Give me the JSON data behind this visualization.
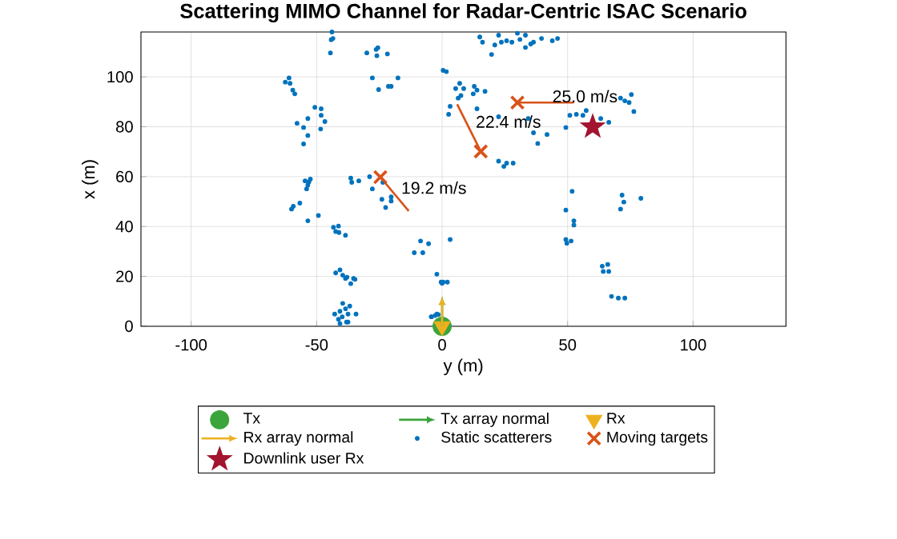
{
  "chart_data": {
    "type": "scatter",
    "title": "Scattering MIMO Channel for Radar-Centric ISAC Scenario",
    "xlabel": "y (m)",
    "ylabel": "x (m)",
    "xlim": [
      -120,
      137
    ],
    "ylim": [
      0,
      118
    ],
    "xticks": [
      -100,
      -50,
      0,
      50,
      100
    ],
    "yticks": [
      0,
      20,
      40,
      60,
      80,
      100
    ],
    "grid": true,
    "legend": "bottom",
    "series": [
      {
        "name": "Tx",
        "marker": "circle",
        "color": "#3ba43b",
        "x": [
          0
        ],
        "values": [
          0
        ]
      },
      {
        "name": "Tx array normal",
        "type": "line",
        "color": "#3ba43b"
      },
      {
        "name": "Rx",
        "marker": "triangle",
        "color": "#edb120",
        "x": [
          0
        ],
        "values": [
          0
        ]
      },
      {
        "name": "Rx array normal",
        "type": "line",
        "color": "#edb120"
      },
      {
        "name": "Static scatterers",
        "marker": "circle",
        "color": "#0072bd",
        "x": [
          -43.9,
          -43.5,
          -44.2,
          -44.5,
          -30,
          -26.3,
          -25.6,
          -26,
          -21.8,
          -27.8,
          -25.3,
          -21.4,
          -20.3,
          -17.6,
          -62.5,
          -61,
          -60.6,
          -59.5,
          -58.7,
          -57.8,
          -55.2,
          -53.5,
          -55.2,
          -53.5,
          -50.7,
          -48.2,
          -48.2,
          -46.7,
          -48.4,
          -54.6,
          -52.5,
          -54,
          -53.5,
          -53.1,
          -59.3,
          -60,
          -56.7,
          -53.5,
          -49.3,
          -36.4,
          -36,
          -33.2,
          -28.9,
          -23.6,
          -24,
          -22.5,
          -20.3,
          -20.3,
          -27.8,
          -43.3,
          -41.3,
          -42.4,
          -41.1,
          -38.5,
          -42.4,
          -40.7,
          -39.6,
          -38.5,
          -37.9,
          -35.3,
          -36.4,
          -34.7,
          -42.8,
          -40.7,
          -39.6,
          -38.5,
          -37.5,
          -39.8,
          -41.3,
          -38.1,
          -36.8,
          -34.3,
          -40.7,
          -37.5,
          -11.1,
          -8.6,
          -7.7,
          -5.4,
          -2.1,
          -0.4,
          0.4,
          -4.3,
          -2.8,
          -1.5,
          0.4,
          1.7,
          3.2,
          2.1,
          0,
          -4.3,
          -2.1,
          5.4,
          7,
          8.6,
          3.2,
          6.4,
          7.5,
          2.6,
          12.8,
          13.9,
          12.4,
          17.1,
          13.9,
          22.5,
          34.3,
          38.1,
          36.4,
          41.8,
          49.3,
          50.9,
          53.5,
          56.1,
          57.4,
          63.2,
          66.4,
          71.1,
          72.8,
          75.4,
          74.5,
          76.4,
          22.5,
          24.6,
          25.7,
          28.3,
          15,
          16.1,
          19.7,
          21,
          22.5,
          23.6,
          25.7,
          27.8,
          30,
          31,
          33.2,
          35.3,
          36.4,
          39.6,
          43.9,
          46,
          33.2,
          51.8,
          49.3,
          52.5,
          52.5,
          49.3,
          51.4,
          49.7,
          71.7,
          72.4,
          71.1,
          79.2,
          63.8,
          66,
          64.2,
          66.4,
          67.5,
          70.2,
          72.8
        ],
        "values": [
          118,
          115.4,
          114.9,
          109.6,
          109.6,
          111,
          111.7,
          108.5,
          109.2,
          99.6,
          94.9,
          96.2,
          96.2,
          99.6,
          97.9,
          99.6,
          97.4,
          94.7,
          93.2,
          81.4,
          79.7,
          83.3,
          73.1,
          76.5,
          87.8,
          87.2,
          84.6,
          82.1,
          79.1,
          58.3,
          59,
          55.1,
          56.6,
          57.9,
          48.1,
          47,
          49.4,
          42.3,
          44.4,
          59.4,
          57.7,
          58.3,
          60,
          57.7,
          50.9,
          47.6,
          51.9,
          50.2,
          55.1,
          39.7,
          40.2,
          38,
          37.6,
          36.5,
          21.4,
          22.6,
          20.5,
          19.2,
          19.7,
          19.2,
          17.1,
          18.8,
          4.9,
          6,
          9.2,
          7,
          4.9,
          3.8,
          2.8,
          1.7,
          8.1,
          4.9,
          1.1,
          1.7,
          29.5,
          34.2,
          29.5,
          33.1,
          20.9,
          17.7,
          17.7,
          3.8,
          4.3,
          4.7,
          102.6,
          102.1,
          34.8,
          17.7,
          17.2,
          3.8,
          4.9,
          95.3,
          97.4,
          95.3,
          88.2,
          91.5,
          92.5,
          85,
          96.2,
          94.7,
          93.2,
          94.2,
          87.2,
          84,
          83.3,
          73.3,
          77.6,
          76.9,
          79.7,
          84.6,
          85,
          84.6,
          86.5,
          83.3,
          81.8,
          91.5,
          90.4,
          92.9,
          89.7,
          86.1,
          66.2,
          64.1,
          65.4,
          65.4,
          116,
          113.9,
          109,
          112.8,
          116.7,
          113.9,
          114.5,
          113.9,
          117.5,
          115,
          111.8,
          113.2,
          113.9,
          115.4,
          114.5,
          115.4,
          116.7,
          54.1,
          46.6,
          42.3,
          40.6,
          34.8,
          34.2,
          33.3,
          52.6,
          49.8,
          47,
          51.3,
          24.1,
          24.8,
          22,
          22,
          12,
          11.3,
          11.3
        ]
      },
      {
        "name": "Moving targets",
        "marker": "cross",
        "color": "#d95319",
        "x": [
          -24.6,
          15.4,
          30
        ],
        "values": [
          59.8,
          70.1,
          89.7
        ]
      },
      {
        "name": "Downlink user Rx",
        "marker": "star",
        "color": "#a2142f",
        "x": [
          60
        ],
        "values": [
          80
        ]
      },
      {
        "type": "line",
        "color": "#d95319",
        "x": [
          -24.6,
          -13.3
        ],
        "values": [
          59.8,
          46.2
        ]
      },
      {
        "type": "line",
        "color": "#d95319",
        "x": [
          15.4,
          6
        ],
        "values": [
          70.1,
          89
        ]
      },
      {
        "type": "line",
        "color": "#d95319",
        "x": [
          30,
          52.5
        ],
        "values": [
          89.7,
          89.7
        ]
      }
    ],
    "annotations": [
      {
        "text": "19.2 m/s",
        "x": -19,
        "y": 53
      },
      {
        "text": "22.4 m/s",
        "x": 10.7,
        "y": 79.5
      },
      {
        "text": "25.0 m/s",
        "x": 41.2,
        "y": 89.7
      }
    ]
  }
}
